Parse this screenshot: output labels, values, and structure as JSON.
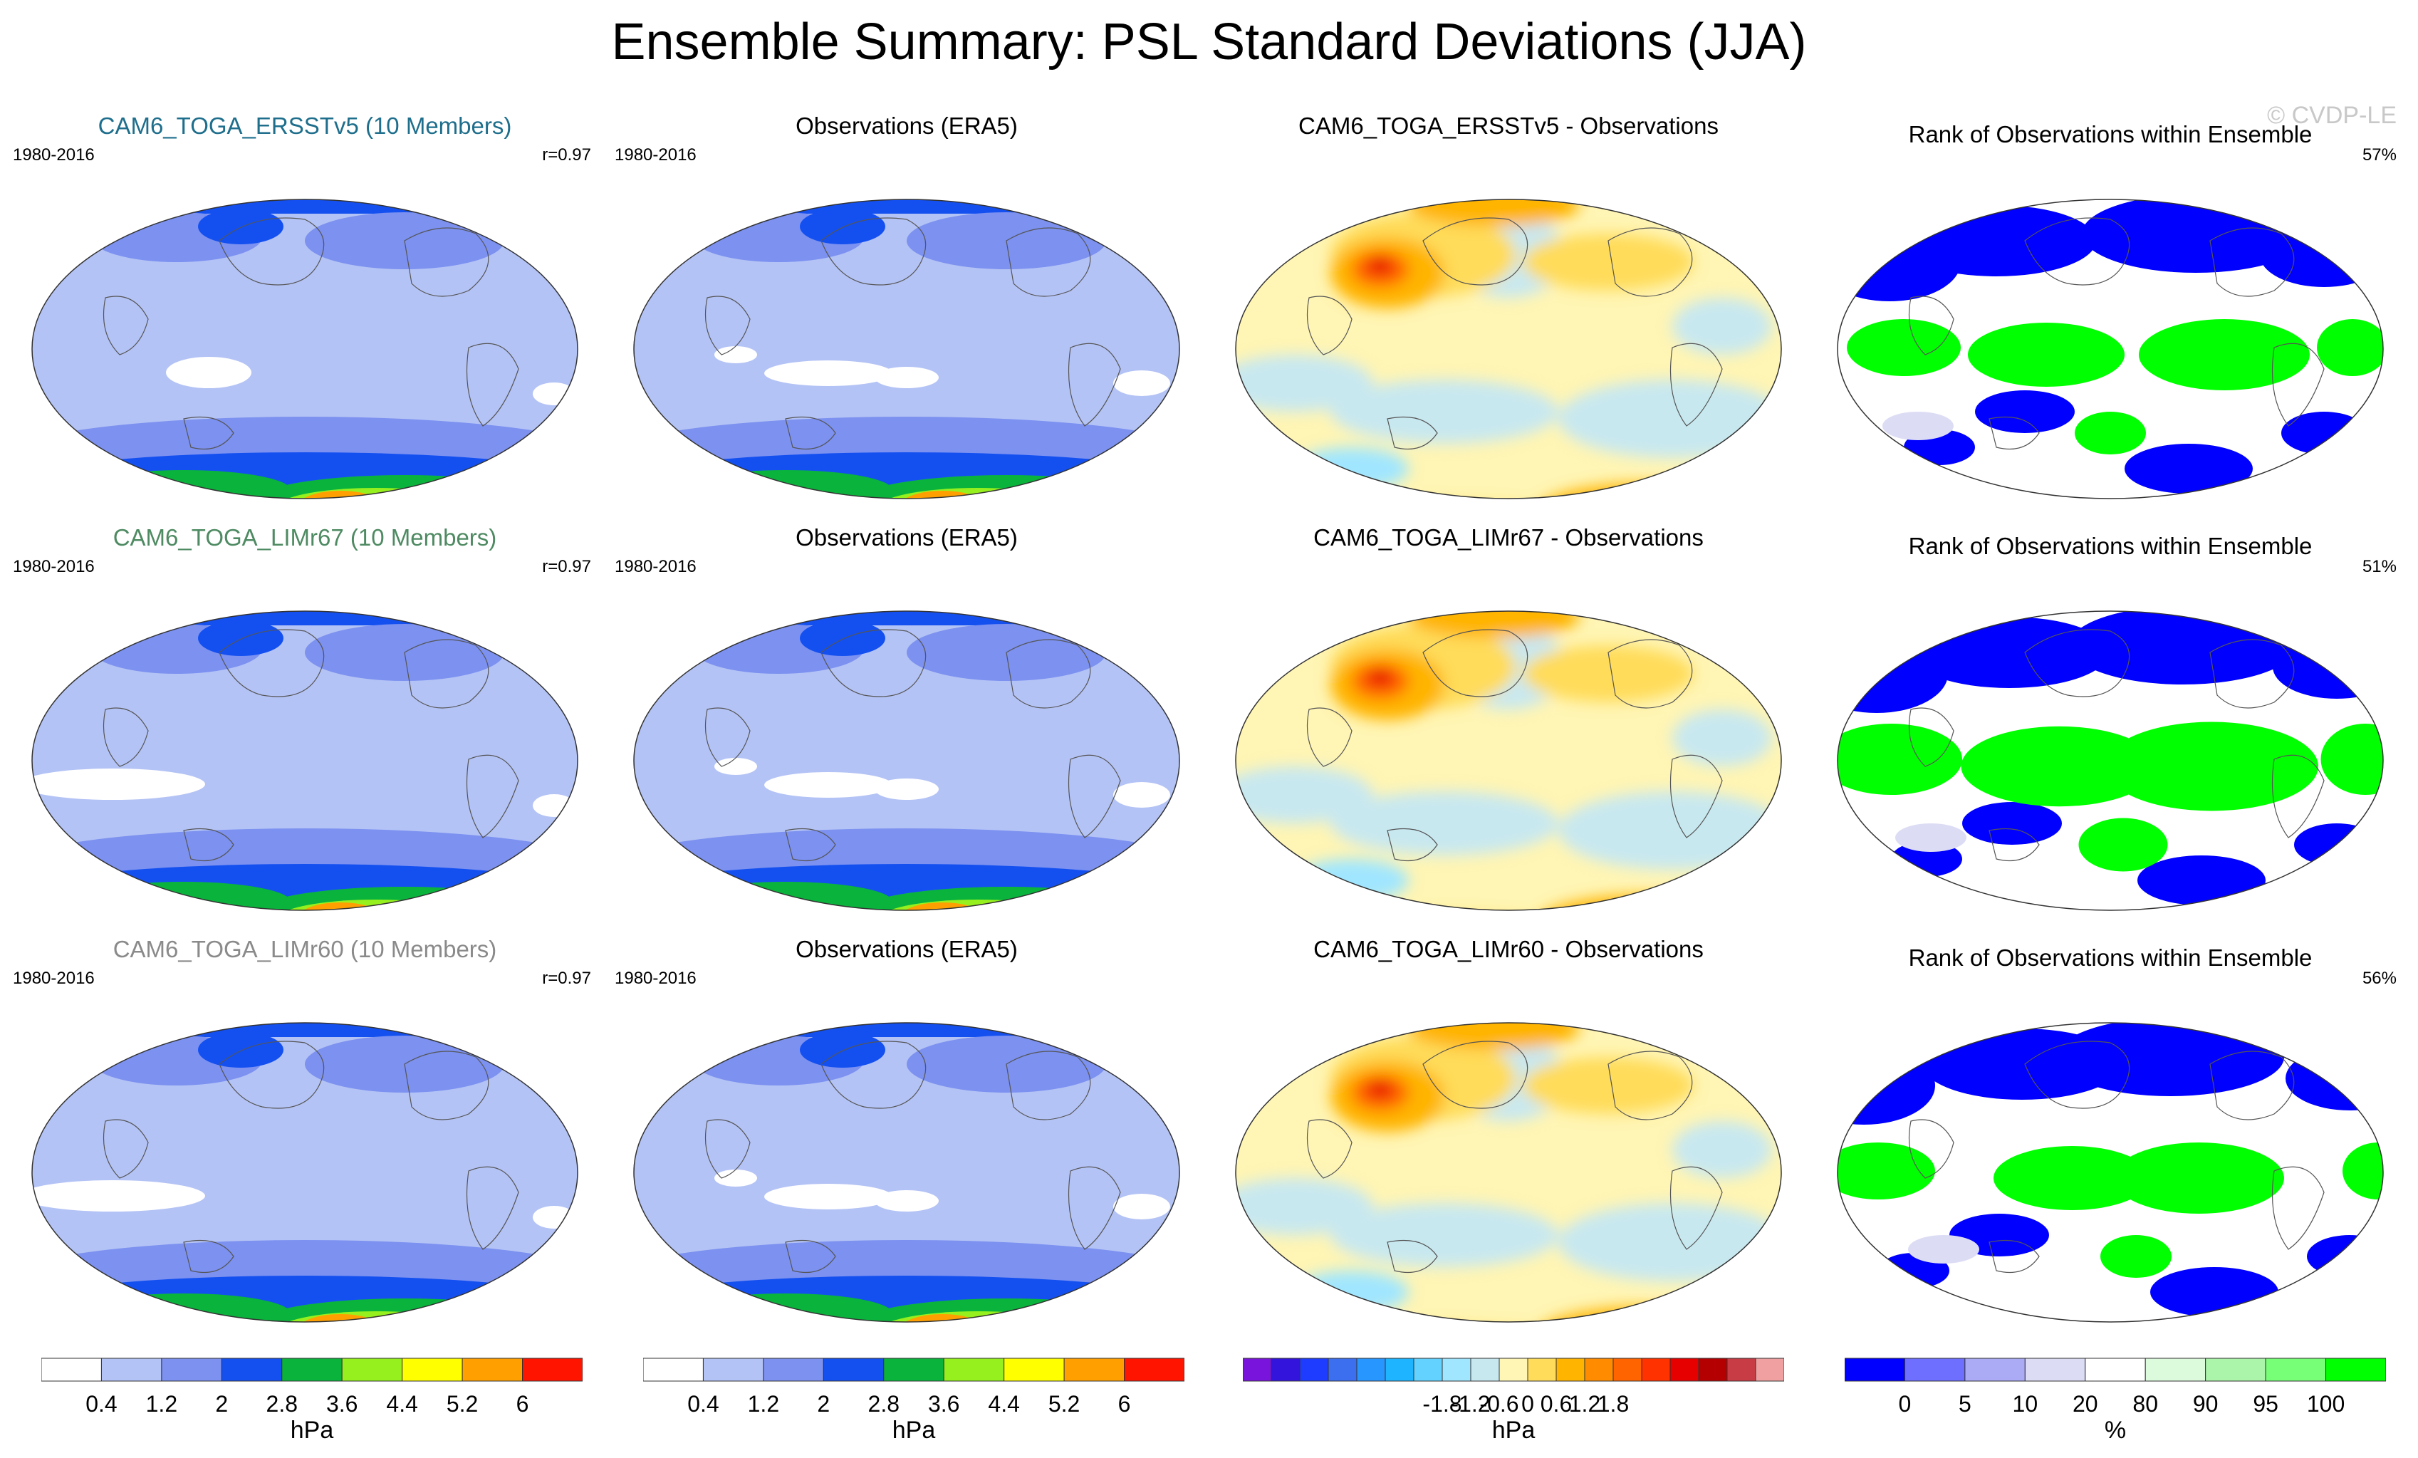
{
  "title": "Ensemble Summary: PSL Standard Deviations (JJA)",
  "watermark": "© CVDP-LE",
  "rows": [
    {
      "ensemble": {
        "label": "CAM6_TOGA_ERSSTv5 (10 Members)",
        "color": "#1e6e8c",
        "years": "1980-2016",
        "corr": "r=0.97"
      },
      "obs": {
        "label": "Observations (ERA5)",
        "years": "1980-2016"
      },
      "diff": {
        "label": "CAM6_TOGA_ERSSTv5 - Observations"
      },
      "rank": {
        "label": "Rank of Observations within Ensemble",
        "pct": "57%"
      }
    },
    {
      "ensemble": {
        "label": "CAM6_TOGA_LIMr67 (10 Members)",
        "color": "#4e8a62",
        "years": "1980-2016",
        "corr": "r=0.97"
      },
      "obs": {
        "label": "Observations (ERA5)",
        "years": "1980-2016"
      },
      "diff": {
        "label": "CAM6_TOGA_LIMr67 - Observations"
      },
      "rank": {
        "label": "Rank of Observations within Ensemble",
        "pct": "51%"
      }
    },
    {
      "ensemble": {
        "label": "CAM6_TOGA_LIMr60 (10 Members)",
        "color": "#8a8a8a",
        "years": "1980-2016",
        "corr": "r=0.97"
      },
      "obs": {
        "label": "Observations (ERA5)",
        "years": "1980-2016"
      },
      "diff": {
        "label": "CAM6_TOGA_LIMr60 - Observations"
      },
      "rank": {
        "label": "Rank of Observations within Ensemble",
        "pct": "56%"
      }
    }
  ],
  "colorbars": [
    {
      "name": "stddev-colorbar-ensemble",
      "unit": "hPa",
      "colors": [
        "#ffffff",
        "#b4c3f5",
        "#7c91f0",
        "#1450f0",
        "#0ab43c",
        "#96f01e",
        "#ffff00",
        "#ffa000",
        "#ff1400"
      ],
      "ticks": [
        "0.4",
        "1.2",
        "2",
        "2.8",
        "3.6",
        "4.4",
        "5.2",
        "6"
      ]
    },
    {
      "name": "stddev-colorbar-obs",
      "unit": "hPa",
      "colors": [
        "#ffffff",
        "#b4c3f5",
        "#7c91f0",
        "#1450f0",
        "#0ab43c",
        "#96f01e",
        "#ffff00",
        "#ffa000",
        "#ff1400"
      ],
      "ticks": [
        "0.4",
        "1.2",
        "2",
        "2.8",
        "3.6",
        "4.4",
        "5.2",
        "6"
      ]
    },
    {
      "name": "difference-colorbar",
      "unit": "hPa",
      "colors": [
        "#7814dc",
        "#3214dc",
        "#1e3cff",
        "#3c6ef0",
        "#2896ff",
        "#1eb4ff",
        "#64d2ff",
        "#a0e6ff",
        "#c8e8f0",
        "#fff5b4",
        "#ffdc5a",
        "#ffb400",
        "#ff8c00",
        "#ff6400",
        "#ff3200",
        "#e60000",
        "#b40000",
        "#c83c46",
        "#f0a0a0"
      ],
      "ticks": [
        "-1.8",
        "-1.2",
        "-0.6",
        "0",
        "0.6",
        "1.2",
        "1.8"
      ]
    },
    {
      "name": "rank-colorbar",
      "unit": "%",
      "colors": [
        "#0000ff",
        "#6e6eff",
        "#aaaaf5",
        "#dcdcf5",
        "#ffffff",
        "#dcfadc",
        "#aaf5aa",
        "#78ff78",
        "#00ff00"
      ],
      "ticks": [
        "0",
        "5",
        "10",
        "20",
        "80",
        "90",
        "95",
        "100"
      ]
    }
  ],
  "chart_data": [
    {
      "type": "heatmap",
      "title": "CAM6_TOGA_ERSSTv5 (10 Members)",
      "variable": "PSL standard deviation",
      "units": "hPa",
      "levels": [
        0.4,
        1.2,
        2,
        2.8,
        3.6,
        4.4,
        5.2,
        6
      ],
      "pattern_correlation": 0.97,
      "period": "1980-2016"
    },
    {
      "type": "heatmap",
      "title": "Observations (ERA5)",
      "units": "hPa",
      "levels": [
        0.4,
        1.2,
        2,
        2.8,
        3.6,
        4.4,
        5.2,
        6
      ],
      "period": "1980-2016"
    },
    {
      "type": "heatmap",
      "title": "CAM6_TOGA_ERSSTv5 - Observations",
      "units": "hPa",
      "levels": [
        -1.8,
        -1.2,
        -0.6,
        0,
        0.6,
        1.2,
        1.8
      ]
    },
    {
      "type": "heatmap",
      "title": "Rank of Observations within Ensemble",
      "units": "%",
      "levels": [
        0,
        5,
        10,
        20,
        80,
        90,
        95,
        100
      ],
      "summary": "57%"
    },
    {
      "type": "heatmap",
      "title": "CAM6_TOGA_LIMr67 (10 Members)",
      "units": "hPa",
      "pattern_correlation": 0.97,
      "period": "1980-2016"
    },
    {
      "type": "heatmap",
      "title": "Observations (ERA5)",
      "units": "hPa",
      "period": "1980-2016"
    },
    {
      "type": "heatmap",
      "title": "CAM6_TOGA_LIMr67 - Observations",
      "units": "hPa"
    },
    {
      "type": "heatmap",
      "title": "Rank of Observations within Ensemble",
      "units": "%",
      "summary": "51%"
    },
    {
      "type": "heatmap",
      "title": "CAM6_TOGA_LIMr60 (10 Members)",
      "units": "hPa",
      "pattern_correlation": 0.97,
      "period": "1980-2016"
    },
    {
      "type": "heatmap",
      "title": "Observations (ERA5)",
      "units": "hPa",
      "period": "1980-2016"
    },
    {
      "type": "heatmap",
      "title": "CAM6_TOGA_LIMr60 - Observations",
      "units": "hPa"
    },
    {
      "type": "heatmap",
      "title": "Rank of Observations within Ensemble",
      "units": "%",
      "summary": "56%"
    }
  ]
}
